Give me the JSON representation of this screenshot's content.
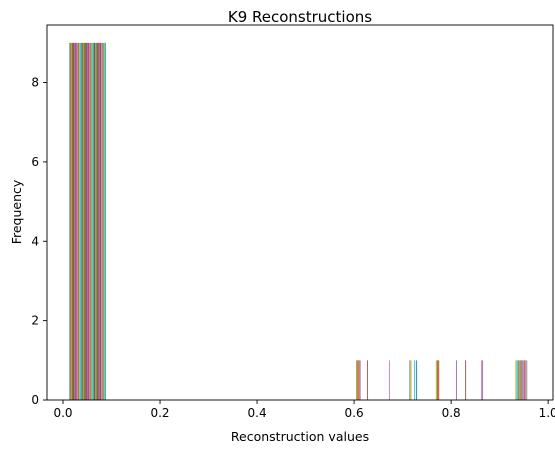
{
  "chart_data": {
    "type": "bar",
    "title": "K9 Reconstructions",
    "xlabel": "Reconstruction values",
    "ylabel": "Frequency",
    "xlim": [
      -0.033,
      1.01
    ],
    "ylim": [
      0,
      9.45
    ],
    "x_ticks": [
      "0.0",
      "0.2",
      "0.4",
      "0.6",
      "0.8",
      "1.0"
    ],
    "x_tick_values": [
      0.0,
      0.2,
      0.4,
      0.6,
      0.8,
      1.0
    ],
    "y_ticks": [
      "0",
      "2",
      "4",
      "6",
      "8"
    ],
    "y_tick_values": [
      0,
      2,
      4,
      6,
      8
    ],
    "grid": false,
    "colors": [
      "#1f77b4",
      "#ff7f0e",
      "#2ca02c",
      "#d62728",
      "#9467bd",
      "#8c564b",
      "#e377c2",
      "#7f7f7f",
      "#bcbd22",
      "#17becf"
    ],
    "bars": [
      {
        "x0": 0.0133,
        "x1": 0.0885,
        "count": 9
      },
      {
        "x0": 0.604,
        "x1": 0.6055,
        "count": 1
      },
      {
        "x0": 0.6065,
        "x1": 0.608,
        "count": 1
      },
      {
        "x0": 0.609,
        "x1": 0.6105,
        "count": 1
      },
      {
        "x0": 0.6115,
        "x1": 0.613,
        "count": 1
      },
      {
        "x0": 0.6265,
        "x1": 0.628,
        "count": 1
      },
      {
        "x0": 0.672,
        "x1": 0.6735,
        "count": 1
      },
      {
        "x0": 0.714,
        "x1": 0.7155,
        "count": 1
      },
      {
        "x0": 0.7165,
        "x1": 0.718,
        "count": 1
      },
      {
        "x0": 0.724,
        "x1": 0.7255,
        "count": 1
      },
      {
        "x0": 0.728,
        "x1": 0.7295,
        "count": 1
      },
      {
        "x0": 0.7685,
        "x1": 0.77,
        "count": 1
      },
      {
        "x0": 0.771,
        "x1": 0.7725,
        "count": 1
      },
      {
        "x0": 0.7735,
        "x1": 0.775,
        "count": 1
      },
      {
        "x0": 0.81,
        "x1": 0.8115,
        "count": 1
      },
      {
        "x0": 0.829,
        "x1": 0.8305,
        "count": 1
      },
      {
        "x0": 0.8615,
        "x1": 0.863,
        "count": 1
      },
      {
        "x0": 0.864,
        "x1": 0.8655,
        "count": 1
      },
      {
        "x0": 0.9325,
        "x1": 0.934,
        "count": 1
      },
      {
        "x0": 0.935,
        "x1": 0.9365,
        "count": 1
      },
      {
        "x0": 0.9375,
        "x1": 0.939,
        "count": 1
      },
      {
        "x0": 0.94,
        "x1": 0.9415,
        "count": 1
      },
      {
        "x0": 0.9425,
        "x1": 0.944,
        "count": 1
      },
      {
        "x0": 0.945,
        "x1": 0.9465,
        "count": 1
      },
      {
        "x0": 0.9475,
        "x1": 0.949,
        "count": 1
      },
      {
        "x0": 0.95,
        "x1": 0.9515,
        "count": 1
      },
      {
        "x0": 0.9525,
        "x1": 0.954,
        "count": 1
      },
      {
        "x0": 0.955,
        "x1": 0.9565,
        "count": 1
      }
    ]
  }
}
